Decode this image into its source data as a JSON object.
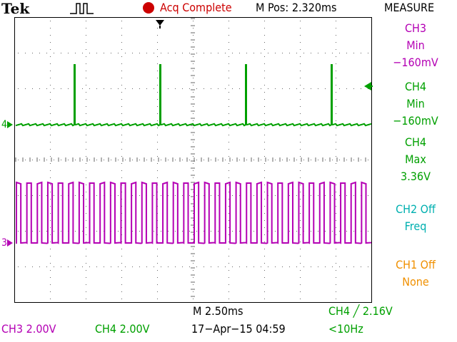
{
  "brand": "Tek",
  "status": {
    "acq": "Acq Complete",
    "m_pos": "M Pos: 2.320ms",
    "acq_color": "#cc0000",
    "run_icon": "pulse-run-icon"
  },
  "measure": {
    "title": "MEASURE",
    "items": [
      {
        "source": "CH3",
        "type": "Min",
        "value": "−160mV",
        "color": "#b400b4"
      },
      {
        "source": "CH4",
        "type": "Min",
        "value": "−160mV",
        "color": "#00a000"
      },
      {
        "source": "CH4",
        "type": "Max",
        "value": "3.36V",
        "color": "#00a000"
      },
      {
        "source": "CH2 Off",
        "type": "Freq",
        "value": "",
        "color": "#00b0b0"
      },
      {
        "source": "CH1 Off",
        "type": "None",
        "value": "",
        "color": "#f09000"
      }
    ]
  },
  "footer": {
    "timebase": "M 2.50ms",
    "trigger": "CH4 ╱ 2.16V",
    "ch3_scale": "CH3  2.00V",
    "ch4_scale": "CH4  2.00V",
    "datetime": "17−Apr−15 04:59",
    "freq": "<10Hz"
  },
  "markers": {
    "ch4": "4",
    "ch3": "3"
  },
  "colors": {
    "ch3": "#b400b4",
    "ch4": "#00a000",
    "grid": "#666666"
  },
  "waveforms": {
    "ch4_pulse_count": 4,
    "ch3_cycles": 34
  }
}
